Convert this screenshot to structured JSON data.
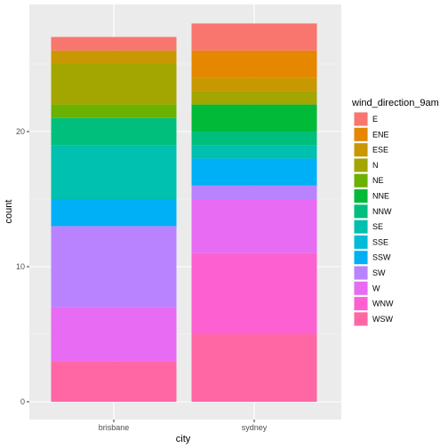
{
  "chart_data": {
    "type": "bar",
    "stacked": true,
    "categories": [
      "brisbane",
      "sydney"
    ],
    "xlabel": "city",
    "ylabel": "count",
    "ylim": [
      0,
      28
    ],
    "yticks": [
      0,
      10,
      20
    ],
    "grid": true,
    "legend_title": "wind_direction_9am",
    "legend_position": "right",
    "series": [
      {
        "name": "E",
        "color": "#F8766D",
        "values": [
          1,
          2
        ]
      },
      {
        "name": "ENE",
        "color": "#E58700",
        "values": [
          0,
          2
        ]
      },
      {
        "name": "ESE",
        "color": "#C99800",
        "values": [
          1,
          1
        ]
      },
      {
        "name": "N",
        "color": "#A3A500",
        "values": [
          3,
          1
        ]
      },
      {
        "name": "NE",
        "color": "#6BB100",
        "values": [
          1,
          0
        ]
      },
      {
        "name": "NNE",
        "color": "#00BA38",
        "values": [
          0,
          2
        ]
      },
      {
        "name": "NNW",
        "color": "#00BF7D",
        "values": [
          2,
          1
        ]
      },
      {
        "name": "SE",
        "color": "#00C0AF",
        "values": [
          4,
          1
        ]
      },
      {
        "name": "SSE",
        "color": "#00BCD8",
        "values": [
          0,
          0
        ]
      },
      {
        "name": "SSW",
        "color": "#00B0F6",
        "values": [
          2,
          2
        ]
      },
      {
        "name": "SW",
        "color": "#B983FF",
        "values": [
          6,
          1
        ]
      },
      {
        "name": "W",
        "color": "#E76BF3",
        "values": [
          4,
          4
        ]
      },
      {
        "name": "WNW",
        "color": "#FD61D1",
        "values": [
          0,
          6
        ]
      },
      {
        "name": "WSW",
        "color": "#FF67A4",
        "values": [
          3,
          5
        ]
      }
    ]
  }
}
